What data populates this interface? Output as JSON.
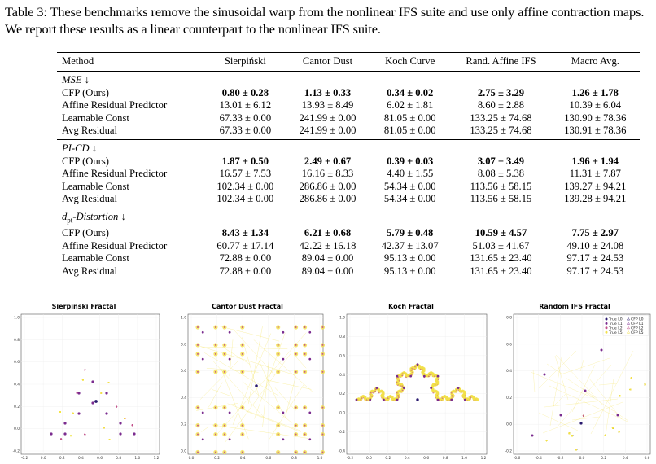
{
  "caption": "Table 3: These benchmarks remove the sinusoidal warp from the nonlinear IFS suite and use only affine contraction maps. We report these results as a linear counterpart to the nonlinear IFS suite.",
  "table": {
    "headers": [
      "Method",
      "Sierpiński",
      "Cantor Dust",
      "Koch Curve",
      "Rand. Affine IFS",
      "Macro Avg."
    ],
    "sections": [
      {
        "title": "MSE ↓",
        "rows": [
          {
            "method": "CFP (Ours)",
            "bold": true,
            "cells": [
              "0.80 ± 0.28",
              "1.13 ± 0.33",
              "0.34 ± 0.02",
              "2.75 ± 3.29",
              "1.26 ± 1.78"
            ]
          },
          {
            "method": "Affine Residual Predictor",
            "bold": false,
            "cells": [
              "13.01 ± 6.12",
              "13.93 ± 8.49",
              "6.02 ± 1.81",
              "8.60 ± 2.88",
              "10.39 ± 6.04"
            ]
          },
          {
            "method": "Learnable Const",
            "bold": false,
            "cells": [
              "67.33 ± 0.00",
              "241.99 ± 0.00",
              "81.05 ± 0.00",
              "133.25 ± 74.68",
              "130.90 ± 78.36"
            ]
          },
          {
            "method": "Avg Residual",
            "bold": false,
            "cells": [
              "67.33 ± 0.00",
              "241.99 ± 0.00",
              "81.05 ± 0.00",
              "133.25 ± 74.68",
              "130.91 ± 78.36"
            ]
          }
        ]
      },
      {
        "title": "PI-CD ↓",
        "rows": [
          {
            "method": "CFP (Ours)",
            "bold": true,
            "cells": [
              "1.87 ± 0.50",
              "2.49 ± 0.67",
              "0.39 ± 0.03",
              "3.07 ± 3.49",
              "1.96 ± 1.94"
            ]
          },
          {
            "method": "Affine Residual Predictor",
            "bold": false,
            "cells": [
              "16.57 ± 7.53",
              "16.16 ± 8.33",
              "4.40 ± 1.55",
              "8.08 ± 5.38",
              "11.31 ± 7.87"
            ]
          },
          {
            "method": "Learnable Const",
            "bold": false,
            "cells": [
              "102.34 ± 0.00",
              "286.86 ± 0.00",
              "54.34 ± 0.00",
              "113.56 ± 58.15",
              "139.27 ± 94.21"
            ]
          },
          {
            "method": "Avg Residual",
            "bold": false,
            "cells": [
              "102.34 ± 0.00",
              "286.86 ± 0.00",
              "54.34 ± 0.00",
              "113.56 ± 58.15",
              "139.28 ± 94.21"
            ]
          }
        ]
      },
      {
        "title": "dpt-Distortion ↓",
        "rows": [
          {
            "method": "CFP (Ours)",
            "bold": true,
            "cells": [
              "8.43 ± 1.34",
              "6.21 ± 0.68",
              "5.79 ± 0.48",
              "10.59 ± 4.57",
              "7.75 ± 2.97"
            ]
          },
          {
            "method": "Affine Residual Predictor",
            "bold": false,
            "cells": [
              "60.77 ± 17.14",
              "42.22 ± 16.18",
              "42.37 ± 13.07",
              "51.03 ± 41.67",
              "49.10 ± 24.08"
            ]
          },
          {
            "method": "Learnable Const",
            "bold": false,
            "cells": [
              "72.88 ± 0.00",
              "89.04 ± 0.00",
              "95.13 ± 0.00",
              "131.65 ± 23.40",
              "97.17 ± 24.53"
            ]
          },
          {
            "method": "Avg Residual",
            "bold": false,
            "cells": [
              "72.88 ± 0.00",
              "89.04 ± 0.00",
              "95.13 ± 0.00",
              "131.65 ± 23.40",
              "97.17 ± 24.53"
            ]
          }
        ]
      }
    ]
  },
  "plots": [
    {
      "title": "Sierpinski Fractal",
      "xticks": [
        "-0.2",
        "0.0",
        "0.2",
        "0.4",
        "0.6",
        "0.8",
        "1.0",
        "1.2"
      ],
      "yticks": [
        "1.0",
        "0.8",
        "0.6",
        "0.4",
        "0.2",
        "0.0",
        "-0.2"
      ]
    },
    {
      "title": "Cantor Dust Fractal",
      "xticks": [
        "0.0",
        "0.2",
        "0.4",
        "0.6",
        "0.8",
        "1.0"
      ],
      "yticks": [
        "1.0",
        "0.8",
        "0.6",
        "0.4",
        "0.2",
        "0.0"
      ]
    },
    {
      "title": "Koch Fractal",
      "xticks": [
        "-0.2",
        "0.0",
        "0.2",
        "0.4",
        "0.6",
        "0.8",
        "1.0",
        "1.2"
      ],
      "yticks": [
        "1.0",
        "0.8",
        "0.6",
        "0.4",
        "0.2",
        "0.0",
        "-0.2",
        "-0.4"
      ]
    },
    {
      "title": "Random IFS Fractal",
      "xticks": [
        "-0.6",
        "-0.4",
        "-0.2",
        "0.0",
        "0.2",
        "0.4",
        "0.6"
      ],
      "yticks": [
        "0.8",
        "0.6",
        "0.4",
        "0.2",
        "0.0",
        "-0.2"
      ],
      "legend": [
        "True L0",
        "True L1",
        "True L2",
        "True L5",
        "CFP L0",
        "CFP L1",
        "CFP L2",
        "CFP L5"
      ]
    }
  ],
  "colors": {
    "level0": "#2a1a6e",
    "level1": "#7b2c8f",
    "level2": "#c2508b",
    "level5": "#f2e04a",
    "cfp_fill": "#f5d24a"
  }
}
